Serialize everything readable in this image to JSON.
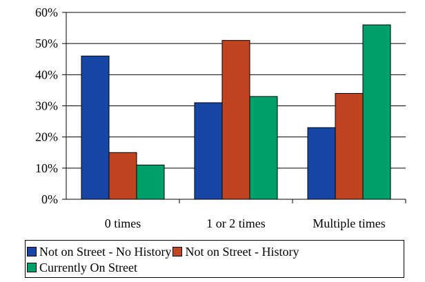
{
  "chart_data": {
    "type": "bar",
    "categories": [
      "0 times",
      "1 or 2 times",
      "Multiple times"
    ],
    "series": [
      {
        "name": "Not on Street - No History",
        "color": "#1747a6",
        "values": [
          46,
          31,
          23
        ]
      },
      {
        "name": "Not on Street - History",
        "color": "#c0441f",
        "values": [
          15,
          51,
          34
        ]
      },
      {
        "name": "Currently On Street",
        "color": "#00a06a",
        "values": [
          11,
          33,
          56
        ]
      }
    ],
    "y_ticks": [
      "0%",
      "10%",
      "20%",
      "30%",
      "40%",
      "50%",
      "60%"
    ],
    "ylim": [
      0,
      60
    ],
    "grid": true,
    "legend_position": "bottom"
  }
}
